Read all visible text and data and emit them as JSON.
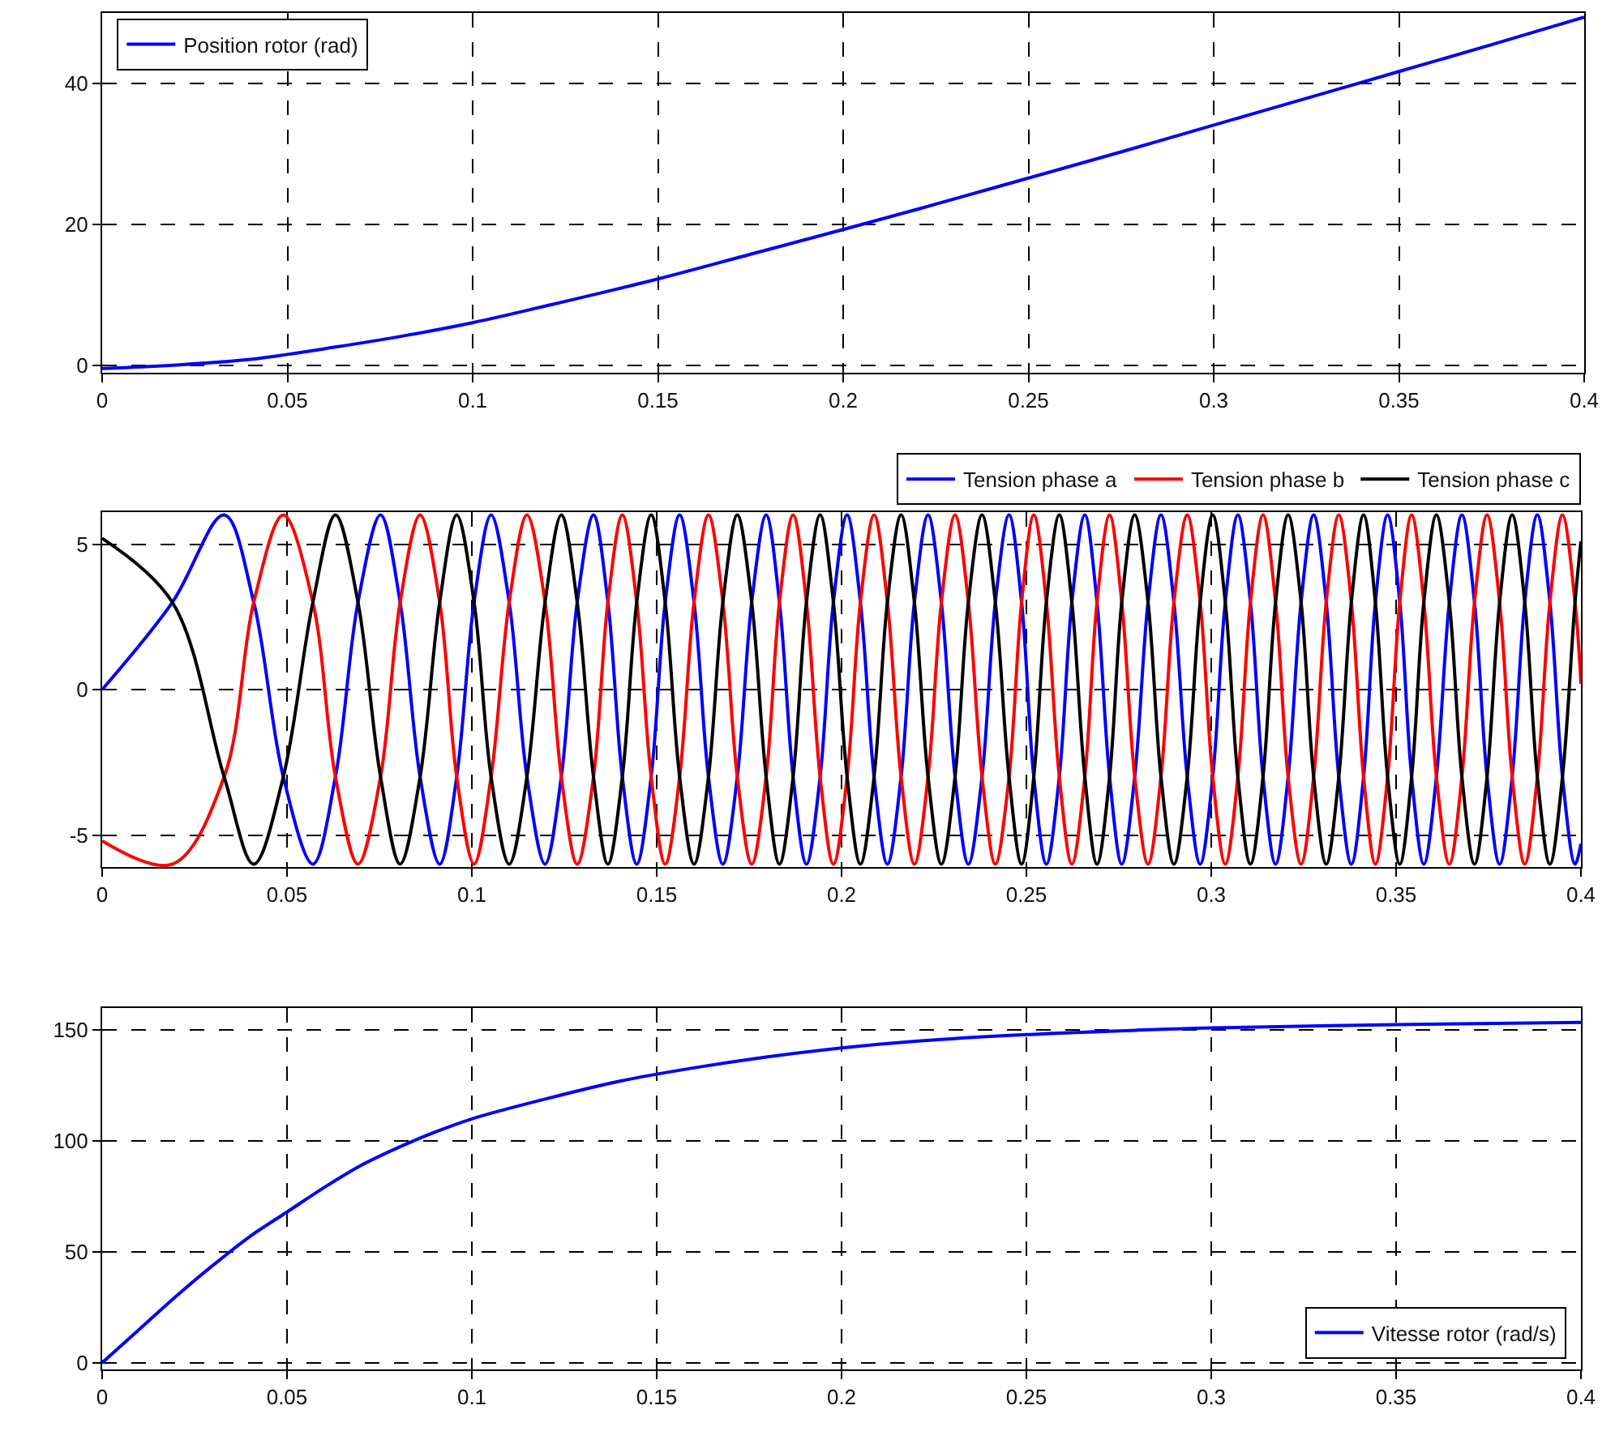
{
  "chart_data": [
    {
      "type": "line",
      "xlim": [
        0,
        0.4
      ],
      "xticks": [
        0,
        0.05,
        0.1,
        0.15,
        0.2,
        0.25,
        0.3,
        0.35,
        0.4
      ],
      "ylim": [
        -1,
        50
      ],
      "yticks": [
        0,
        20,
        40
      ],
      "grid": true,
      "legend": "top left",
      "x": [
        0,
        0.02,
        0.04,
        0.05,
        0.06,
        0.08,
        0.1,
        0.12,
        0.15,
        0.175,
        0.2,
        0.225,
        0.25,
        0.275,
        0.3,
        0.325,
        0.35,
        0.375,
        0.4
      ],
      "series": [
        {
          "name": "Position rotor (rad)",
          "color": "#0000ff",
          "values": [
            -0.4,
            0.1,
            0.9,
            1.6,
            2.4,
            4.1,
            6.1,
            8.5,
            12.3,
            15.8,
            19.3,
            22.9,
            26.6,
            30.3,
            34.1,
            37.9,
            41.7,
            45.5,
            49.4
          ]
        }
      ]
    },
    {
      "type": "line",
      "xlim": [
        0,
        0.4
      ],
      "xticks": [
        0,
        0.05,
        0.1,
        0.15,
        0.2,
        0.25,
        0.3,
        0.35,
        0.4
      ],
      "ylim": [
        -6.1,
        6.1
      ],
      "yticks": [
        -5,
        0,
        5
      ],
      "grid": true,
      "legend": "top",
      "x": [
        0,
        0.019,
        0.033,
        0.041,
        0.049,
        0.057,
        0.0631,
        0.0692,
        0.0753,
        0.0806,
        0.086,
        0.0913,
        0.0959,
        0.1006,
        0.1052,
        0.1101,
        0.1149,
        0.1198,
        0.1242,
        0.1285,
        0.1329,
        0.1368,
        0.1407,
        0.1446,
        0.1485,
        0.1523,
        0.1562,
        0.1601,
        0.164,
        0.1679,
        0.1718,
        0.1757,
        0.1796,
        0.1832,
        0.1869,
        0.1905,
        0.1942,
        0.1978,
        0.2015,
        0.2051,
        0.2088,
        0.2124,
        0.2161,
        0.2197,
        0.2234,
        0.227,
        0.2307,
        0.2343,
        0.238,
        0.2416,
        0.2453,
        0.2487,
        0.252,
        0.2554,
        0.2589,
        0.2623,
        0.2658,
        0.2691,
        0.2725,
        0.2758,
        0.2793,
        0.2829,
        0.2864,
        0.2899,
        0.2935,
        0.297,
        0.3004,
        0.3038,
        0.3072,
        0.3106,
        0.314,
        0.3174,
        0.3208,
        0.3243,
        0.3277,
        0.3311,
        0.3345,
        0.3379,
        0.3412,
        0.3444,
        0.3477,
        0.351,
        0.3542,
        0.3575,
        0.3609,
        0.3644,
        0.3678,
        0.3712,
        0.3746,
        0.378,
        0.3814,
        0.3848,
        0.3882,
        0.3916,
        0.395,
        0.3984,
        0.4
      ],
      "series": [
        {
          "name": "Tension phase a",
          "color": "#0000ff",
          "values": [
            0,
            3,
            6,
            3,
            -3,
            -6,
            -3,
            3,
            6,
            3,
            -3,
            -6,
            -3,
            3,
            6,
            3,
            -3,
            -6,
            -3,
            3,
            6,
            3,
            -3,
            -6,
            -3,
            3,
            6,
            3,
            -3,
            -6,
            -3,
            3,
            6,
            3,
            -3,
            -6,
            -3,
            3,
            6,
            3,
            -3,
            -6,
            -3,
            3,
            6,
            3,
            -3,
            -6,
            -3,
            3,
            6,
            3,
            -3,
            -6,
            -3,
            3,
            6,
            3,
            -3,
            -6,
            -3,
            3,
            6,
            3,
            -3,
            -6,
            -3,
            3,
            6,
            3,
            -3,
            -6,
            -3,
            3,
            6,
            3,
            -3,
            -6,
            -3,
            3,
            6,
            3,
            -3,
            -6,
            -3,
            3,
            6,
            3,
            -3,
            -6,
            -3,
            3,
            6,
            3,
            -3,
            -6,
            -5.3
          ]
        },
        {
          "name": "Tension phase b",
          "color": "#ff0000",
          "values": [
            -5.2,
            -6,
            -3,
            3,
            6,
            3,
            -3,
            -6,
            -3,
            3,
            6,
            3,
            -3,
            -6,
            -3,
            3,
            6,
            3,
            -3,
            -6,
            -3,
            3,
            6,
            3,
            -3,
            -6,
            -3,
            3,
            6,
            3,
            -3,
            -6,
            -3,
            3,
            6,
            3,
            -3,
            -6,
            -3,
            3,
            6,
            3,
            -3,
            -6,
            -3,
            3,
            6,
            3,
            -3,
            -6,
            -3,
            3,
            6,
            3,
            -3,
            -6,
            -3,
            3,
            6,
            3,
            -3,
            -6,
            -3,
            3,
            6,
            3,
            -3,
            -6,
            -3,
            3,
            6,
            3,
            -3,
            -6,
            -3,
            3,
            6,
            3,
            -3,
            -6,
            -3,
            3,
            6,
            3,
            -3,
            -6,
            -3,
            3,
            6,
            3,
            -3,
            -6,
            -3,
            3,
            6,
            3,
            0.2
          ]
        },
        {
          "name": "Tension phase c",
          "color": "#000000",
          "values": [
            5.2,
            3,
            -3,
            -6,
            -3,
            3,
            6,
            3,
            -3,
            -6,
            -3,
            3,
            6,
            3,
            -3,
            -6,
            -3,
            3,
            6,
            3,
            -3,
            -6,
            -3,
            3,
            6,
            3,
            -3,
            -6,
            -3,
            3,
            6,
            3,
            -3,
            -6,
            -3,
            3,
            6,
            3,
            -3,
            -6,
            -3,
            3,
            6,
            3,
            -3,
            -6,
            -3,
            3,
            6,
            3,
            -3,
            -6,
            -3,
            3,
            6,
            3,
            -3,
            -6,
            -3,
            3,
            6,
            3,
            -3,
            -6,
            -3,
            3,
            6,
            3,
            -3,
            -6,
            -3,
            3,
            6,
            3,
            -3,
            -6,
            -3,
            3,
            6,
            3,
            -3,
            -6,
            -3,
            3,
            6,
            3,
            -3,
            -6,
            -3,
            3,
            6,
            3,
            -3,
            -6,
            -3,
            3,
            5.1
          ]
        }
      ]
    },
    {
      "type": "line",
      "xlim": [
        0,
        0.4
      ],
      "xticks": [
        0,
        0.05,
        0.1,
        0.15,
        0.2,
        0.25,
        0.3,
        0.35,
        0.4
      ],
      "ylim": [
        -3,
        160
      ],
      "yticks": [
        0,
        50,
        100,
        150
      ],
      "grid": true,
      "legend": "bottom right",
      "x": [
        0,
        0.01,
        0.02,
        0.03,
        0.04,
        0.05,
        0.06,
        0.07,
        0.08,
        0.09,
        0.1,
        0.12,
        0.14,
        0.16,
        0.18,
        0.2,
        0.22,
        0.25,
        0.28,
        0.3,
        0.35,
        0.4
      ],
      "series": [
        {
          "name": "Vitesse rotor (rad/s)",
          "color": "#0000ff",
          "values": [
            0,
            15,
            30,
            44,
            57,
            68,
            79,
            89,
            97,
            104,
            110,
            119,
            127,
            133,
            138,
            142,
            145,
            148,
            150,
            151,
            152.5,
            153.5
          ]
        }
      ]
    }
  ]
}
